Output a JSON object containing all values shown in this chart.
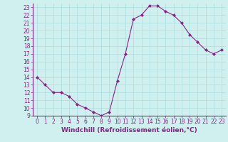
{
  "x": [
    0,
    1,
    2,
    3,
    4,
    5,
    6,
    7,
    8,
    9,
    10,
    11,
    12,
    13,
    14,
    15,
    16,
    17,
    18,
    19,
    20,
    21,
    22,
    23
  ],
  "y": [
    14,
    13,
    12,
    12,
    11.5,
    10.5,
    10,
    9.5,
    9,
    9.5,
    13.5,
    17,
    21.5,
    22,
    23.2,
    23.2,
    22.5,
    22,
    21,
    19.5,
    18.5,
    17.5,
    17,
    17.5
  ],
  "line_color": "#882288",
  "marker": "D",
  "markersize": 2,
  "linewidth": 0.8,
  "bg_color": "#cff0ee",
  "grid_color": "#aadddd",
  "xlabel": "Windchill (Refroidissement éolien,°C)",
  "xlabel_fontsize": 6.5,
  "tick_fontsize": 5.5,
  "ylim": [
    9,
    23.5
  ],
  "xlim": [
    -0.5,
    23.5
  ],
  "yticks": [
    9,
    10,
    11,
    12,
    13,
    14,
    15,
    16,
    17,
    18,
    19,
    20,
    21,
    22,
    23
  ],
  "xticks": [
    0,
    1,
    2,
    3,
    4,
    5,
    6,
    7,
    8,
    9,
    10,
    11,
    12,
    13,
    14,
    15,
    16,
    17,
    18,
    19,
    20,
    21,
    22,
    23
  ]
}
